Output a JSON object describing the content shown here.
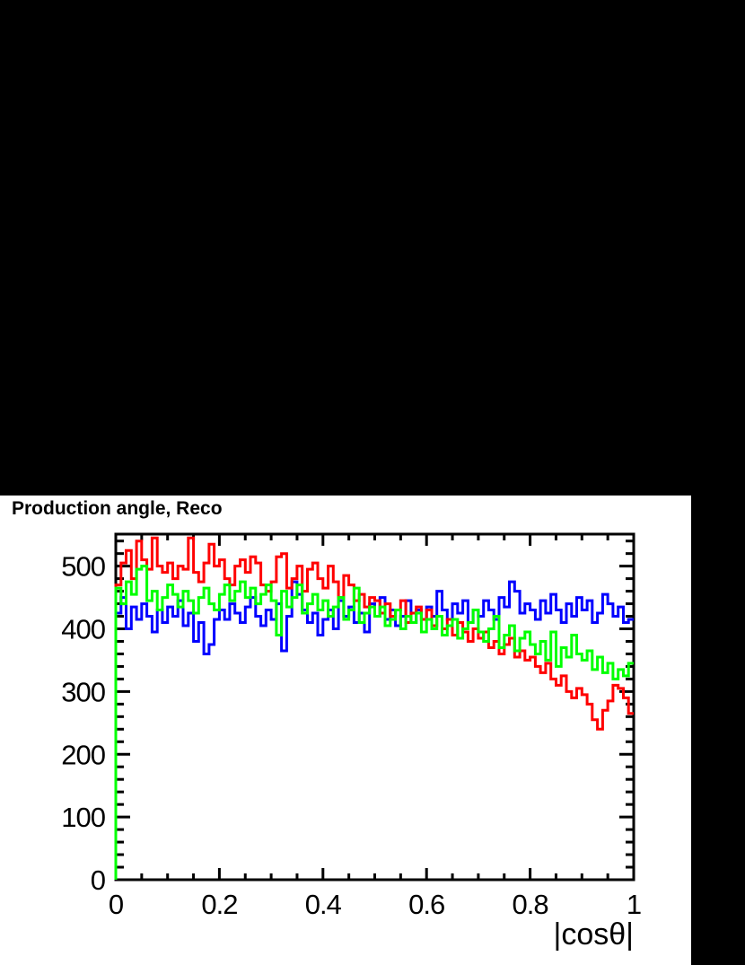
{
  "window": {
    "canvas_background": "#000000",
    "pad_background": "#ffffff",
    "frame_color": "#000000"
  },
  "chart_data": {
    "type": "histogram",
    "title": "Production angle, Reco",
    "xlabel": "|cosθ|",
    "ylabel": "",
    "xlim": [
      0,
      1
    ],
    "ylim": [
      0,
      551
    ],
    "n_bins": 100,
    "grid": "off",
    "legend": "none",
    "x_ticks": {
      "values": [
        0,
        0.2,
        0.4,
        0.6,
        0.8,
        1
      ],
      "labels": [
        "0",
        "0.2",
        "0.4",
        "0.6",
        "0.8",
        "1"
      ],
      "minor_step": 0.05
    },
    "y_ticks": {
      "values": [
        0,
        100,
        200,
        300,
        400,
        500
      ],
      "labels": [
        "0",
        "100",
        "200",
        "300",
        "400",
        "500"
      ],
      "minor_step": 20
    },
    "series": [
      {
        "name": "blue",
        "color": "#0000ff",
        "values": [
          425,
          450,
          400,
          435,
          415,
          440,
          420,
          395,
          430,
          410,
          435,
          420,
          445,
          405,
          425,
          380,
          410,
          360,
          375,
          415,
          430,
          415,
          440,
          425,
          410,
          435,
          450,
          420,
          405,
          430,
          415,
          440,
          365,
          420,
          475,
          455,
          430,
          410,
          425,
          390,
          415,
          430,
          400,
          445,
          420,
          435,
          410,
          425,
          395,
          440,
          420,
          450,
          415,
          430,
          405,
          420,
          445,
          410,
          430,
          415,
          435,
          420,
          460,
          430,
          415,
          440,
          425,
          445,
          410,
          430,
          420,
          445,
          430,
          415,
          450,
          435,
          475,
          460,
          425,
          440,
          430,
          415,
          445,
          425,
          455,
          430,
          410,
          440,
          420,
          450,
          430,
          445,
          410,
          425,
          455,
          440,
          420,
          435,
          410,
          415
        ]
      },
      {
        "name": "red",
        "color": "#ff0000",
        "values": [
          470,
          505,
          525,
          480,
          540,
          510,
          495,
          545,
          500,
          490,
          505,
          480,
          500,
          495,
          545,
          490,
          475,
          505,
          535,
          500,
          510,
          480,
          470,
          500,
          510,
          490,
          515,
          505,
          470,
          460,
          475,
          515,
          520,
          465,
          480,
          500,
          460,
          495,
          505,
          480,
          465,
          500,
          475,
          450,
          485,
          470,
          445,
          455,
          435,
          450,
          445,
          425,
          440,
          420,
          430,
          445,
          410,
          425,
          435,
          415,
          430,
          405,
          420,
          400,
          415,
          390,
          410,
          395,
          380,
          400,
          385,
          395,
          370,
          380,
          360,
          375,
          385,
          355,
          365,
          350,
          355,
          340,
          330,
          345,
          320,
          310,
          325,
          300,
          290,
          305,
          295,
          280,
          255,
          240,
          270,
          285,
          310,
          305,
          290,
          265
        ]
      },
      {
        "name": "green",
        "color": "#00ff00",
        "values": [
          465,
          440,
          475,
          455,
          495,
          500,
          445,
          460,
          430,
          450,
          470,
          455,
          435,
          460,
          445,
          425,
          450,
          465,
          440,
          430,
          455,
          470,
          445,
          460,
          475,
          450,
          465,
          440,
          455,
          470,
          445,
          390,
          460,
          435,
          450,
          470,
          425,
          440,
          455,
          430,
          445,
          420,
          435,
          450,
          415,
          430,
          465,
          410,
          425,
          435,
          420,
          435,
          405,
          415,
          430,
          400,
          420,
          410,
          425,
          395,
          415,
          400,
          420,
          390,
          405,
          415,
          385,
          400,
          410,
          430,
          395,
          380,
          400,
          420,
          370,
          390,
          405,
          365,
          385,
          395,
          375,
          360,
          380,
          350,
          395,
          340,
          370,
          355,
          390,
          360,
          350,
          365,
          335,
          355,
          330,
          345,
          320,
          335,
          325,
          345
        ]
      }
    ]
  }
}
